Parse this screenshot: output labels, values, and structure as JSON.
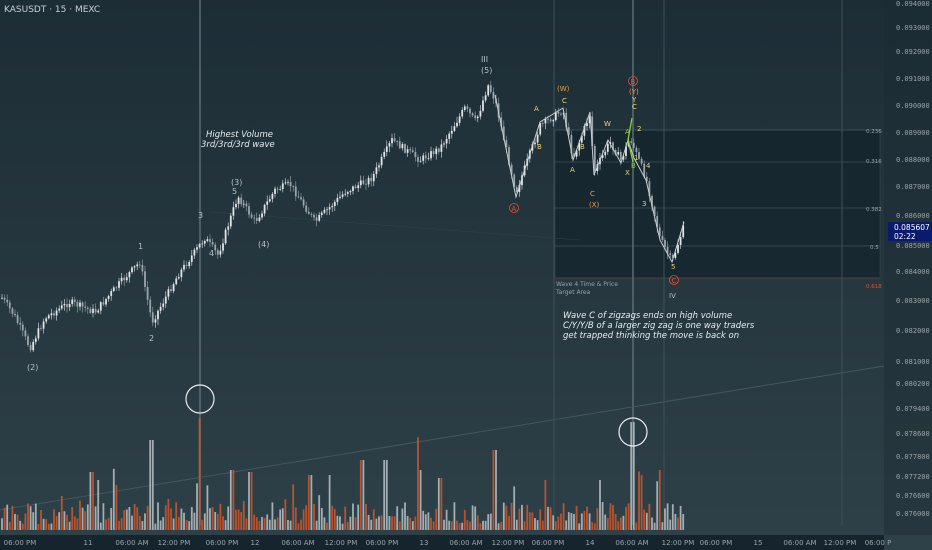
{
  "header": {
    "symbol_line": "KASUSDT · 15 · MEXC"
  },
  "colors": {
    "background_top": "#1c2d36",
    "background_bottom": "#2d3f47",
    "bull_candle": "#dfe4e6",
    "bear_candle": "#9aa6ab",
    "volume_up": "#b8c2c6",
    "volume_down": "#d2572a",
    "wave_orange": "#f0a03c",
    "wave_yellow": "#e8d670",
    "wave_green": "#8ed13a",
    "wave_red": "#e0532e",
    "last_price_bg": "#0a1a6e"
  },
  "price_axis": {
    "ticks": [
      "0.094000",
      "0.093000",
      "0.092000",
      "0.091000",
      "0.090000",
      "0.089000",
      "0.088000",
      "0.087000",
      "0.086000",
      "0.085000",
      "0.084000",
      "0.083000",
      "0.082000",
      "0.081000",
      "0.080200",
      "0.079400",
      "0.078600",
      "0.077800",
      "0.077200",
      "0.076600",
      "0.076000"
    ],
    "last_price": "0.085607",
    "countdown": "02:22"
  },
  "time_axis": {
    "ticks": [
      "06:00 PM",
      "11",
      "06:00 AM",
      "12:00 PM",
      "06:00 PM",
      "12",
      "06:00 AM",
      "12:00 PM",
      "06:00 PM",
      "13",
      "06:00 AM",
      "12:00 PM",
      "06:00 PM",
      "14",
      "06:00 AM",
      "12:00 PM",
      "06:00 PM",
      "15",
      "06:00 AM",
      "12:00 PM",
      "06:00 P"
    ]
  },
  "annotations": {
    "volume_note_line1": "Highest Volume",
    "volume_note_line2": "3rd/3rd/3rd wave",
    "wave_note_line1": "Wave C of zigzags ends on high volume",
    "wave_note_line2": "C/Y/Y/B of a larger zig zag is one way traders",
    "wave_note_line3": "get trapped thinking the move is back on",
    "box_label_line1": "Wave 4 Time & Price",
    "box_label_line2": "Target Area"
  },
  "fib_levels": {
    "l1": "0.236",
    "l2": "0.316",
    "l3": "0.382",
    "l4": "0.5",
    "l5": "0.618"
  },
  "wave_labels": {
    "w2_bottom": "(2)",
    "w1": "1",
    "w2": "2",
    "w3": "3",
    "w4": "4",
    "w5": "5",
    "w3_paren": "(3)",
    "w4_paren": "(4)",
    "w5_top": "III",
    "w5_paren": "(5)",
    "a1": "A",
    "b1": "B",
    "c1": "C",
    "w_paren": "(W)",
    "circ_a": "A",
    "a2": "A",
    "c2": "C",
    "x_paren": "(X)",
    "w_mid": "W",
    "x_mid": "X",
    "y_stack_top": "(Y)",
    "y_stack": "Y",
    "c_stack": "C",
    "circ_b": "B",
    "g_a": "A",
    "g_b": "B",
    "g_2": "2",
    "g_1": "1",
    "g_4": "4",
    "g_3": "3",
    "g_5": "5",
    "circ_c": "C",
    "iv": "IV"
  }
}
